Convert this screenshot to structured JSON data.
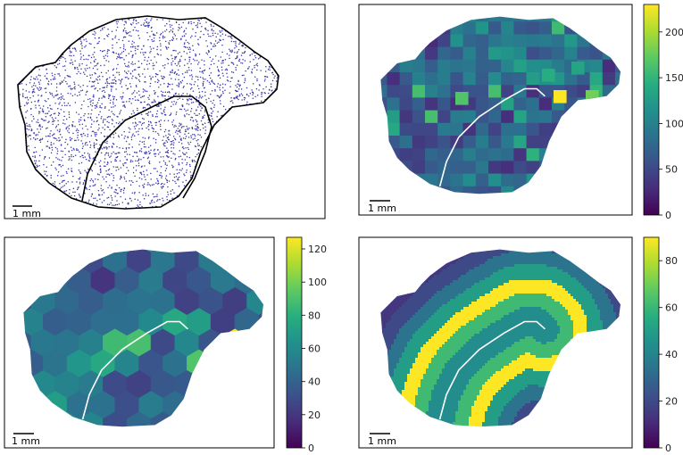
{
  "panels": {
    "scatter": {
      "scale_label": "1 mm"
    },
    "square_grid": {
      "scale_label": "1 mm",
      "colorbar": {
        "ticks": [
          "0",
          "50",
          "100",
          "150",
          "200"
        ],
        "range": [
          0,
          230
        ]
      }
    },
    "hex_grid": {
      "scale_label": "1 mm",
      "colorbar": {
        "ticks": [
          "0",
          "20",
          "40",
          "60",
          "80",
          "100",
          "120"
        ],
        "range": [
          0,
          127
        ]
      }
    },
    "bands": {
      "scale_label": "1 mm",
      "colorbar": {
        "ticks": [
          "0",
          "20",
          "40",
          "60",
          "80"
        ],
        "range": [
          0,
          90
        ]
      }
    }
  },
  "colors": {
    "point": "#3b3ba8",
    "outline": "#000000",
    "boundary_line": "#ffffff",
    "colormap": "viridis"
  }
}
